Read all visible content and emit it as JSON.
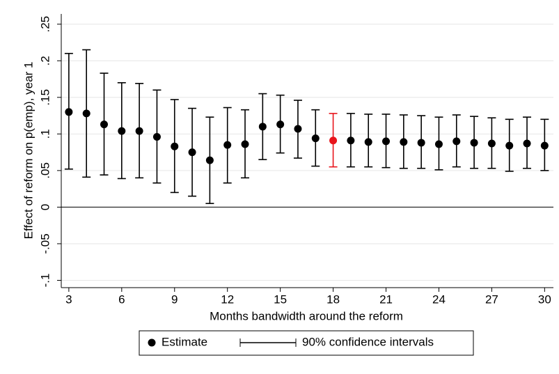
{
  "chart_data": {
    "type": "errorbar",
    "x_label": "Months bandwidth around the reform",
    "y_label": "Effect of reform on p(emp), year 1",
    "x": [
      3,
      4,
      5,
      6,
      7,
      8,
      9,
      10,
      11,
      12,
      13,
      14,
      15,
      16,
      17,
      18,
      19,
      20,
      21,
      22,
      23,
      24,
      25,
      26,
      27,
      28,
      29,
      30
    ],
    "series": [
      {
        "name": "Estimate",
        "color": "#000000",
        "values": [
          0.13,
          0.128,
          0.113,
          0.104,
          0.104,
          0.096,
          0.083,
          0.075,
          0.064,
          0.085,
          0.086,
          0.11,
          0.113,
          0.107,
          0.094,
          0.091,
          0.091,
          0.089,
          0.09,
          0.089,
          0.088,
          0.086,
          0.09,
          0.088,
          0.087,
          0.084,
          0.087,
          0.084
        ],
        "point_colors": [
          "#000000",
          "#000000",
          "#000000",
          "#000000",
          "#000000",
          "#000000",
          "#000000",
          "#000000",
          "#000000",
          "#000000",
          "#000000",
          "#000000",
          "#000000",
          "#000000",
          "#000000",
          "#e8141b",
          "#000000",
          "#000000",
          "#000000",
          "#000000",
          "#000000",
          "#000000",
          "#000000",
          "#000000",
          "#000000",
          "#000000",
          "#000000",
          "#000000"
        ]
      },
      {
        "name": "90% confidence intervals",
        "color": "#000000",
        "lower": [
          0.052,
          0.041,
          0.044,
          0.039,
          0.04,
          0.033,
          0.02,
          0.015,
          0.005,
          0.033,
          0.04,
          0.065,
          0.074,
          0.067,
          0.056,
          0.055,
          0.055,
          0.055,
          0.054,
          0.053,
          0.053,
          0.051,
          0.055,
          0.053,
          0.053,
          0.049,
          0.053,
          0.05
        ],
        "upper": [
          0.21,
          0.215,
          0.183,
          0.17,
          0.169,
          0.16,
          0.147,
          0.135,
          0.123,
          0.136,
          0.133,
          0.155,
          0.153,
          0.146,
          0.133,
          0.128,
          0.128,
          0.127,
          0.127,
          0.126,
          0.125,
          0.123,
          0.126,
          0.124,
          0.122,
          0.12,
          0.123,
          0.12
        ],
        "point_colors": [
          "#000000",
          "#000000",
          "#000000",
          "#000000",
          "#000000",
          "#000000",
          "#000000",
          "#000000",
          "#000000",
          "#000000",
          "#000000",
          "#000000",
          "#000000",
          "#000000",
          "#000000",
          "#e8141b",
          "#000000",
          "#000000",
          "#000000",
          "#000000",
          "#000000",
          "#000000",
          "#000000",
          "#000000",
          "#000000",
          "#000000",
          "#000000",
          "#000000"
        ]
      }
    ],
    "xlim": [
      2.57,
      30.5
    ],
    "ylim": [
      -0.11,
      0.264
    ],
    "xticks": [
      3,
      6,
      9,
      12,
      15,
      18,
      21,
      24,
      27,
      30
    ],
    "yticks": [
      {
        "value": 0.25,
        "label": ".25"
      },
      {
        "value": 0.2,
        "label": ".2"
      },
      {
        "value": 0.15,
        "label": ".15"
      },
      {
        "value": 0.1,
        "label": ".1"
      },
      {
        "value": 0.05,
        "label": ".05"
      },
      0,
      {
        "value": -0.05,
        "label": "-.05"
      },
      {
        "value": -0.1,
        "label": "-.1"
      }
    ],
    "grid": true,
    "zero_line": true,
    "legend": "bottom"
  }
}
